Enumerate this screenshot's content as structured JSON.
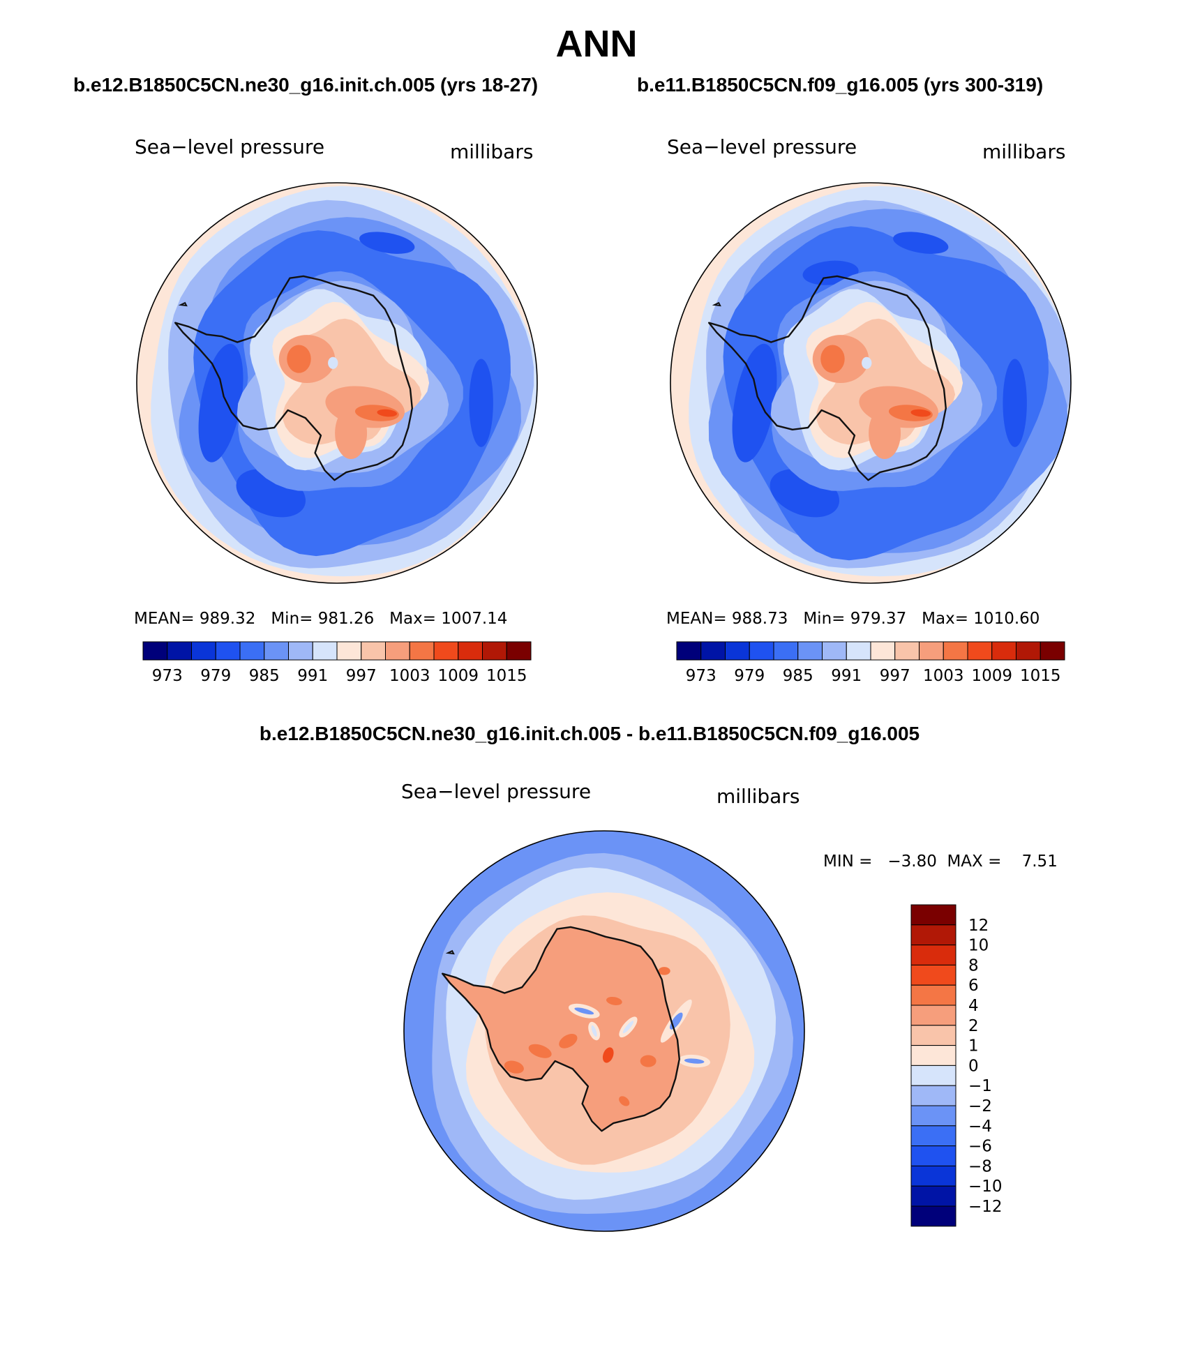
{
  "title": "ANN",
  "colors": {
    "coast": "#111111",
    "abs_scale": [
      "#00007a",
      "#0014a6",
      "#0a35d8",
      "#1f52f0",
      "#3b6ff5",
      "#6b93f6",
      "#9fb8f7",
      "#d6e4fb",
      "#fde6d8",
      "#f9c4aa",
      "#f69e7c",
      "#f47645",
      "#f04a1c",
      "#d92c0c",
      "#b11806",
      "#7a0000"
    ],
    "diff_scale": [
      "#00007a",
      "#0014a6",
      "#0a35d8",
      "#1f52f0",
      "#3b6ff5",
      "#6b93f6",
      "#9fb8f7",
      "#d6e4fb",
      "#fde6d8",
      "#f9c4aa",
      "#f69e7c",
      "#f47645",
      "#f04a1c",
      "#d92c0c",
      "#b11806",
      "#7a0000"
    ]
  },
  "chart_data": [
    {
      "type": "contour-map",
      "header": "b.e12.B1850C5CN.ne30_g16.init.ch.005 (yrs 18-27)",
      "left_label": "Sea−level pressure",
      "right_label": "millibars",
      "stats": {
        "mean_label": "MEAN=",
        "mean": "989.32",
        "min_label": "Min=",
        "min": "981.26",
        "max_label": "Max=",
        "max": "1007.14"
      },
      "colorbar_ticks": [
        "973",
        "979",
        "985",
        "991",
        "997",
        "1003",
        "1009",
        "1015"
      ],
      "levels": [
        973,
        976,
        979,
        982,
        985,
        988,
        991,
        994,
        997,
        1000,
        1003,
        1006,
        1009,
        1012,
        1015
      ]
    },
    {
      "type": "contour-map",
      "header": "b.e11.B1850C5CN.f09_g16.005 (yrs 300-319)",
      "left_label": "Sea−level pressure",
      "right_label": "millibars",
      "stats": {
        "mean_label": "MEAN=",
        "mean": "988.73",
        "min_label": "Min=",
        "min": "979.37",
        "max_label": "Max=",
        "max": "1010.60"
      },
      "colorbar_ticks": [
        "973",
        "979",
        "985",
        "991",
        "997",
        "1003",
        "1009",
        "1015"
      ],
      "levels": [
        973,
        976,
        979,
        982,
        985,
        988,
        991,
        994,
        997,
        1000,
        1003,
        1006,
        1009,
        1012,
        1015
      ]
    },
    {
      "type": "contour-map-difference",
      "header": "b.e12.B1850C5CN.ne30_g16.init.ch.005 - b.e11.B1850C5CN.f09_g16.005",
      "left_label": "Sea−level pressure",
      "right_label": "millibars",
      "minmax_text": "MIN =   −3.80  MAX =    7.51",
      "min": -3.8,
      "max": 7.51,
      "colorbar_ticks": [
        "12",
        "10",
        "8",
        "6",
        "4",
        "2",
        "1",
        "0",
        "−1",
        "−2",
        "−4",
        "−6",
        "−8",
        "−10",
        "−12"
      ],
      "levels": [
        -12,
        -10,
        -8,
        -6,
        -4,
        -2,
        -1,
        0,
        1,
        2,
        4,
        6,
        8,
        10,
        12
      ]
    }
  ]
}
